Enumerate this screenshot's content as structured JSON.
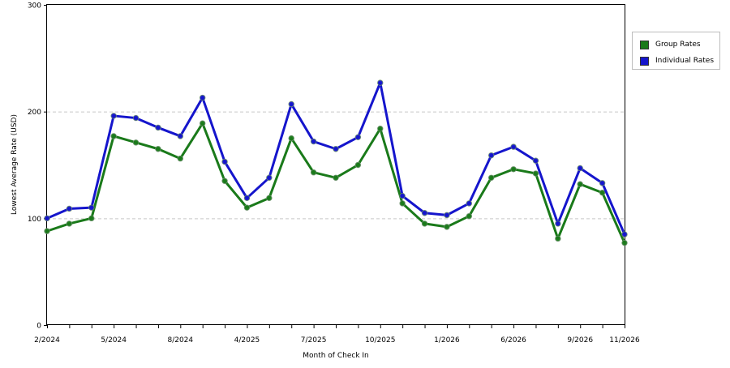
{
  "chart_data": {
    "type": "line",
    "title": "",
    "xlabel": "Month of Check In",
    "ylabel": "Lowest Average Rate (USD)",
    "ylim": [
      0,
      300
    ],
    "yticks": [
      "0",
      "100",
      "200",
      "300"
    ],
    "grid_lines_y": [
      100,
      200
    ],
    "x_tick_labels": [
      "2/2024",
      "5/2024",
      "8/2024",
      "4/2025",
      "7/2025",
      "10/2025",
      "1/2026",
      "6/2026",
      "9/2026",
      "11/2026"
    ],
    "x_tick_indices": [
      0,
      3,
      6,
      9,
      12,
      15,
      18,
      21,
      24,
      26
    ],
    "legend_position": "right",
    "colors": {
      "group": "#1a7a1a",
      "individual": "#1515cc"
    },
    "series": [
      {
        "name": "Group Rates",
        "color": "#1a7a1a",
        "values": [
          88,
          95,
          100,
          177,
          171,
          165,
          156,
          189,
          135,
          110,
          119,
          175,
          143,
          138,
          150,
          184,
          114,
          95,
          92,
          102,
          138,
          146,
          142,
          81,
          132,
          124,
          77
        ]
      },
      {
        "name": "Individual Rates",
        "color": "#1515cc",
        "values": [
          100,
          109,
          110,
          196,
          194,
          185,
          177,
          213,
          153,
          119,
          138,
          207,
          172,
          165,
          176,
          227,
          121,
          105,
          103,
          114,
          159,
          167,
          154,
          95,
          147,
          133,
          85
        ]
      }
    ]
  }
}
